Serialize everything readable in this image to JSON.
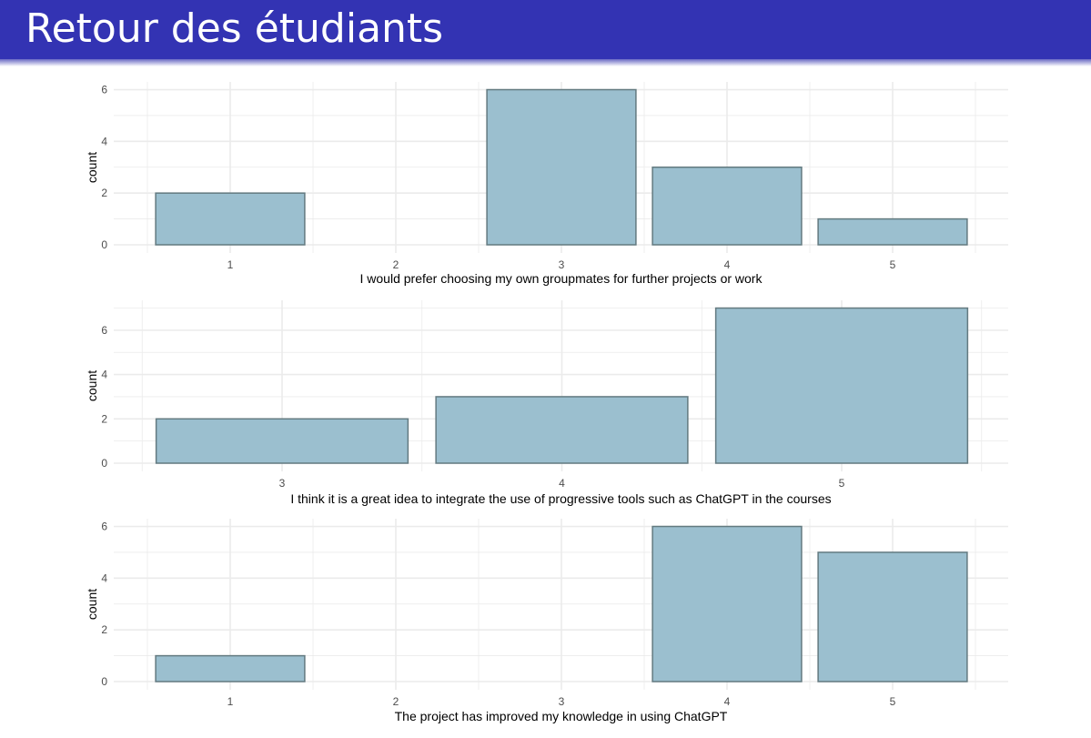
{
  "title": "Retour des étudiants",
  "colors": {
    "header": "#3333b3",
    "bar_fill": "#9bbfcf",
    "bar_stroke": "#637a80",
    "grid": "#ebebeb"
  },
  "chart_data": [
    {
      "type": "bar",
      "xlabel": "I would prefer choosing my own groupmates for further projects or work",
      "ylabel": "count",
      "categories": [
        "1",
        "2",
        "3",
        "4",
        "5"
      ],
      "values": [
        2,
        0,
        6,
        3,
        1
      ],
      "yticks": [
        0,
        2,
        4,
        6
      ],
      "ylim": [
        0,
        6.3
      ],
      "grid": true
    },
    {
      "type": "bar",
      "xlabel": "I think it is a great idea to integrate the use of progressive tools such as ChatGPT in the courses",
      "ylabel": "count",
      "categories": [
        "3",
        "4",
        "5"
      ],
      "values": [
        2,
        3,
        7
      ],
      "yticks": [
        0,
        2,
        4,
        6
      ],
      "ylim": [
        0,
        7.35
      ],
      "grid": true
    },
    {
      "type": "bar",
      "xlabel": "The project has improved my knowledge in using ChatGPT",
      "ylabel": "count",
      "categories": [
        "1",
        "2",
        "3",
        "4",
        "5"
      ],
      "values": [
        1,
        0,
        0,
        6,
        5
      ],
      "yticks": [
        0,
        2,
        4,
        6
      ],
      "ylim": [
        0,
        6.3
      ],
      "grid": true
    }
  ]
}
